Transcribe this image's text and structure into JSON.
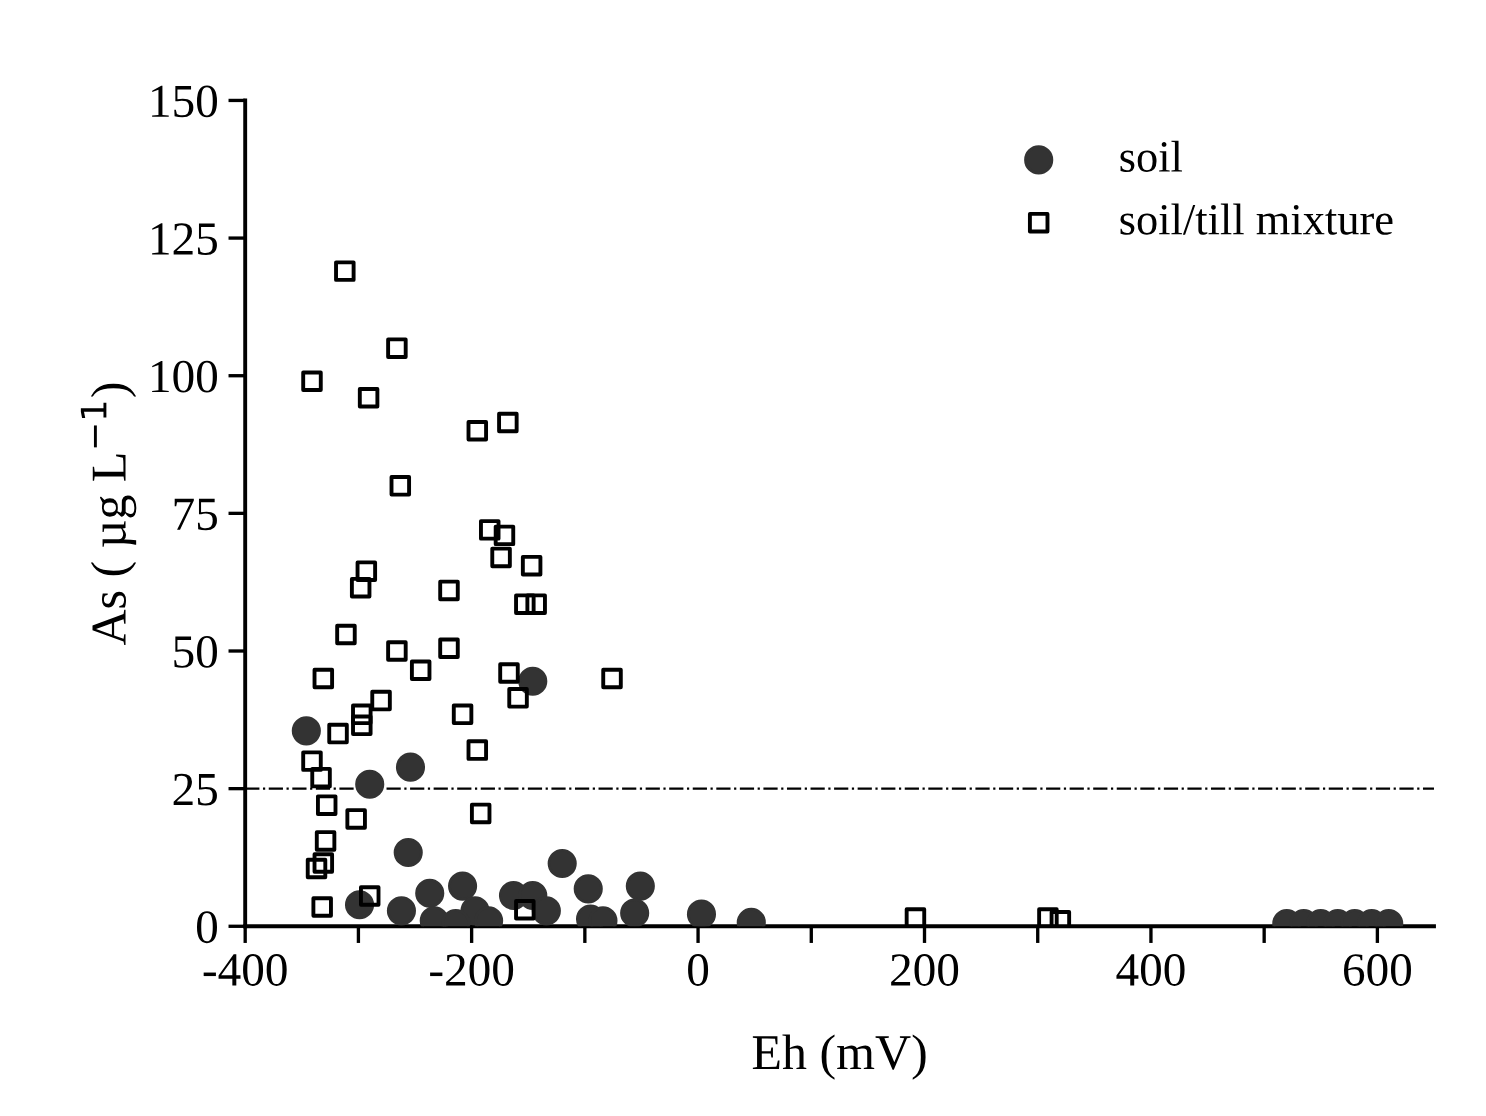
{
  "chart_data": {
    "type": "scatter",
    "xlabel": "Eh (mV)",
    "ylabel": "As ( µg L$^{−1}$)",
    "xlim": [
      -400,
      650
    ],
    "ylim": [
      0,
      150
    ],
    "xticks": [
      -400,
      {
        "value": -300,
        "label": null
      },
      -200,
      {
        "value": -100,
        "label": null
      },
      0,
      {
        "value": 100,
        "label": null
      },
      200,
      {
        "value": 300,
        "label": null
      },
      400,
      {
        "value": 500,
        "label": null
      },
      600
    ],
    "yticks": [
      0,
      25,
      50,
      75,
      100,
      125,
      150
    ],
    "grid": false,
    "legend": "top right",
    "ref_lines": [
      {
        "axis": "y",
        "value": 25,
        "line_style": "dashdot",
        "color": "#000000"
      }
    ],
    "series": [
      {
        "name": "soil",
        "color": "#333333",
        "marker": "circle",
        "x": [
          -346,
          -146,
          -254,
          -290,
          -256,
          -120,
          -97,
          -51,
          -56,
          -208,
          -237,
          -299,
          -262,
          -233,
          -197,
          -185,
          -163,
          -146,
          -134,
          -95,
          -84,
          3,
          47,
          -214,
          520,
          535,
          550,
          565,
          580,
          595,
          610
        ],
        "values": [
          35.5,
          44.5,
          28.9,
          25.8,
          13.4,
          11.4,
          6.8,
          7.3,
          2.4,
          7.3,
          6.0,
          3.9,
          2.8,
          1.0,
          2.8,
          1.0,
          5.6,
          5.6,
          2.8,
          1.3,
          1.0,
          2.2,
          0.7,
          0.5,
          0.5,
          0.5,
          0.5,
          0.5,
          0.5,
          0.5,
          0.5
        ]
      },
      {
        "name": "soil/till mixture",
        "color": "#000000",
        "marker": "square",
        "x": [
          -312,
          -266,
          -341,
          -291,
          -195,
          -168,
          -263,
          -184,
          -171,
          -174,
          -147,
          -293,
          -298,
          -220,
          -153,
          -143,
          -311,
          -266,
          -220,
          -245,
          -331,
          -167,
          -159,
          -76,
          -280,
          -297,
          -208,
          -297,
          -318,
          -195,
          -341,
          -333,
          -328,
          -302,
          -192,
          -329,
          -331,
          -337,
          -332,
          -290,
          -153,
          192,
          309,
          320
        ],
        "values": [
          119,
          105,
          99,
          96,
          90,
          91.5,
          80,
          72,
          71,
          67,
          65.5,
          64.5,
          61.5,
          61,
          58.5,
          58.5,
          53,
          50,
          50.5,
          46.5,
          45,
          46,
          41.5,
          45,
          41,
          38.5,
          38.5,
          36.5,
          35,
          32,
          30,
          27,
          22,
          19.5,
          20.5,
          15.5,
          11.5,
          10.5,
          3.5,
          5.5,
          3,
          1.5,
          1.5,
          1
        ]
      }
    ]
  }
}
